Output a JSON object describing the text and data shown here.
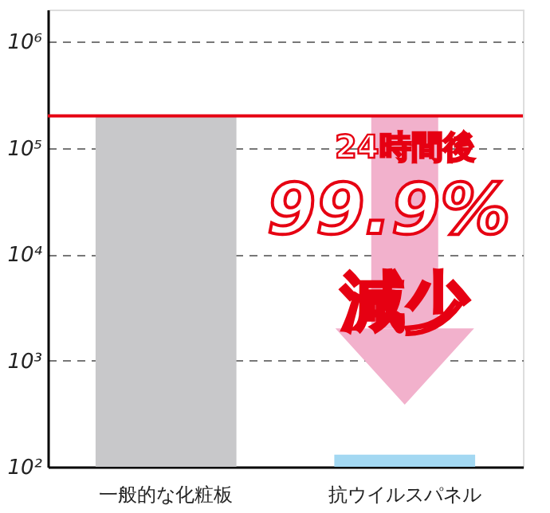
{
  "chart_data": {
    "type": "bar",
    "categories": [
      "一般的な化粧板",
      "抗ウイルスパネル"
    ],
    "values": [
      200000,
      130
    ],
    "colors": [
      "#c8c8ca",
      "#a3d8f2"
    ],
    "log": true,
    "ylim": [
      100,
      2000000
    ],
    "yticks": [
      {
        "value": 100,
        "label": "10²"
      },
      {
        "value": 1000,
        "label": "10³"
      },
      {
        "value": 10000,
        "label": "10⁴"
      },
      {
        "value": 100000,
        "label": "10⁵"
      },
      {
        "value": 1000000,
        "label": "10⁶"
      }
    ],
    "grid": "y",
    "ref_lines": [
      {
        "axis": "y",
        "value": 200000,
        "color": "#e60012"
      }
    ],
    "annotations": [
      "24時間後",
      "99.9%",
      "減少"
    ]
  }
}
